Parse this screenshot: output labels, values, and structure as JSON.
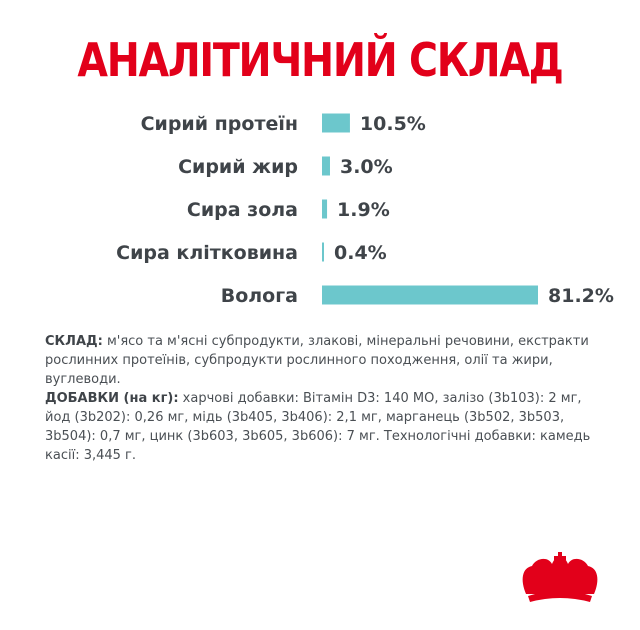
{
  "title": "АНАЛІТИЧНИЙ СКЛАД",
  "chart_data": {
    "type": "bar",
    "orientation": "horizontal",
    "categories": [
      "Сирий протеїн",
      "Сирий жир",
      "Сира зола",
      "Сира клітковина",
      "Волога"
    ],
    "values": [
      10.5,
      3.0,
      1.9,
      0.4,
      81.2
    ],
    "value_labels": [
      "10.5%",
      "3.0%",
      "1.9%",
      "0.4%",
      "81.2%"
    ],
    "bar_color": "#6cc7cc",
    "label_color": "#3f4449",
    "xlim": [
      0,
      81.2
    ],
    "grid": false,
    "legend": "none"
  },
  "composition": {
    "sklad_label": "СКЛАД:",
    "sklad_text": " м'ясо та м'ясні субпродукти, злакові, мінеральні речовини, екстракти рослинних протеїнів, субпродукти рослинного походження, олії та жири, вуглеводи.",
    "dobavky_label": "ДОБАВКИ (на кг):",
    "dobavky_text": " харчові добавки: Вітамін D3: 140 МО, залізо (3b103): 2 мг, йод (3b202): 0,26 мг, мідь (3b405, 3b406): 2,1 мг, марганець (3b502, 3b503, 3b504): 0,7 мг, цинк (3b603, 3b605, 3b606): 7 мг. Технологічні добавки: камедь касії: 3,445 г."
  },
  "logo": {
    "name": "royal-crown-logo",
    "color": "#e2001a"
  }
}
